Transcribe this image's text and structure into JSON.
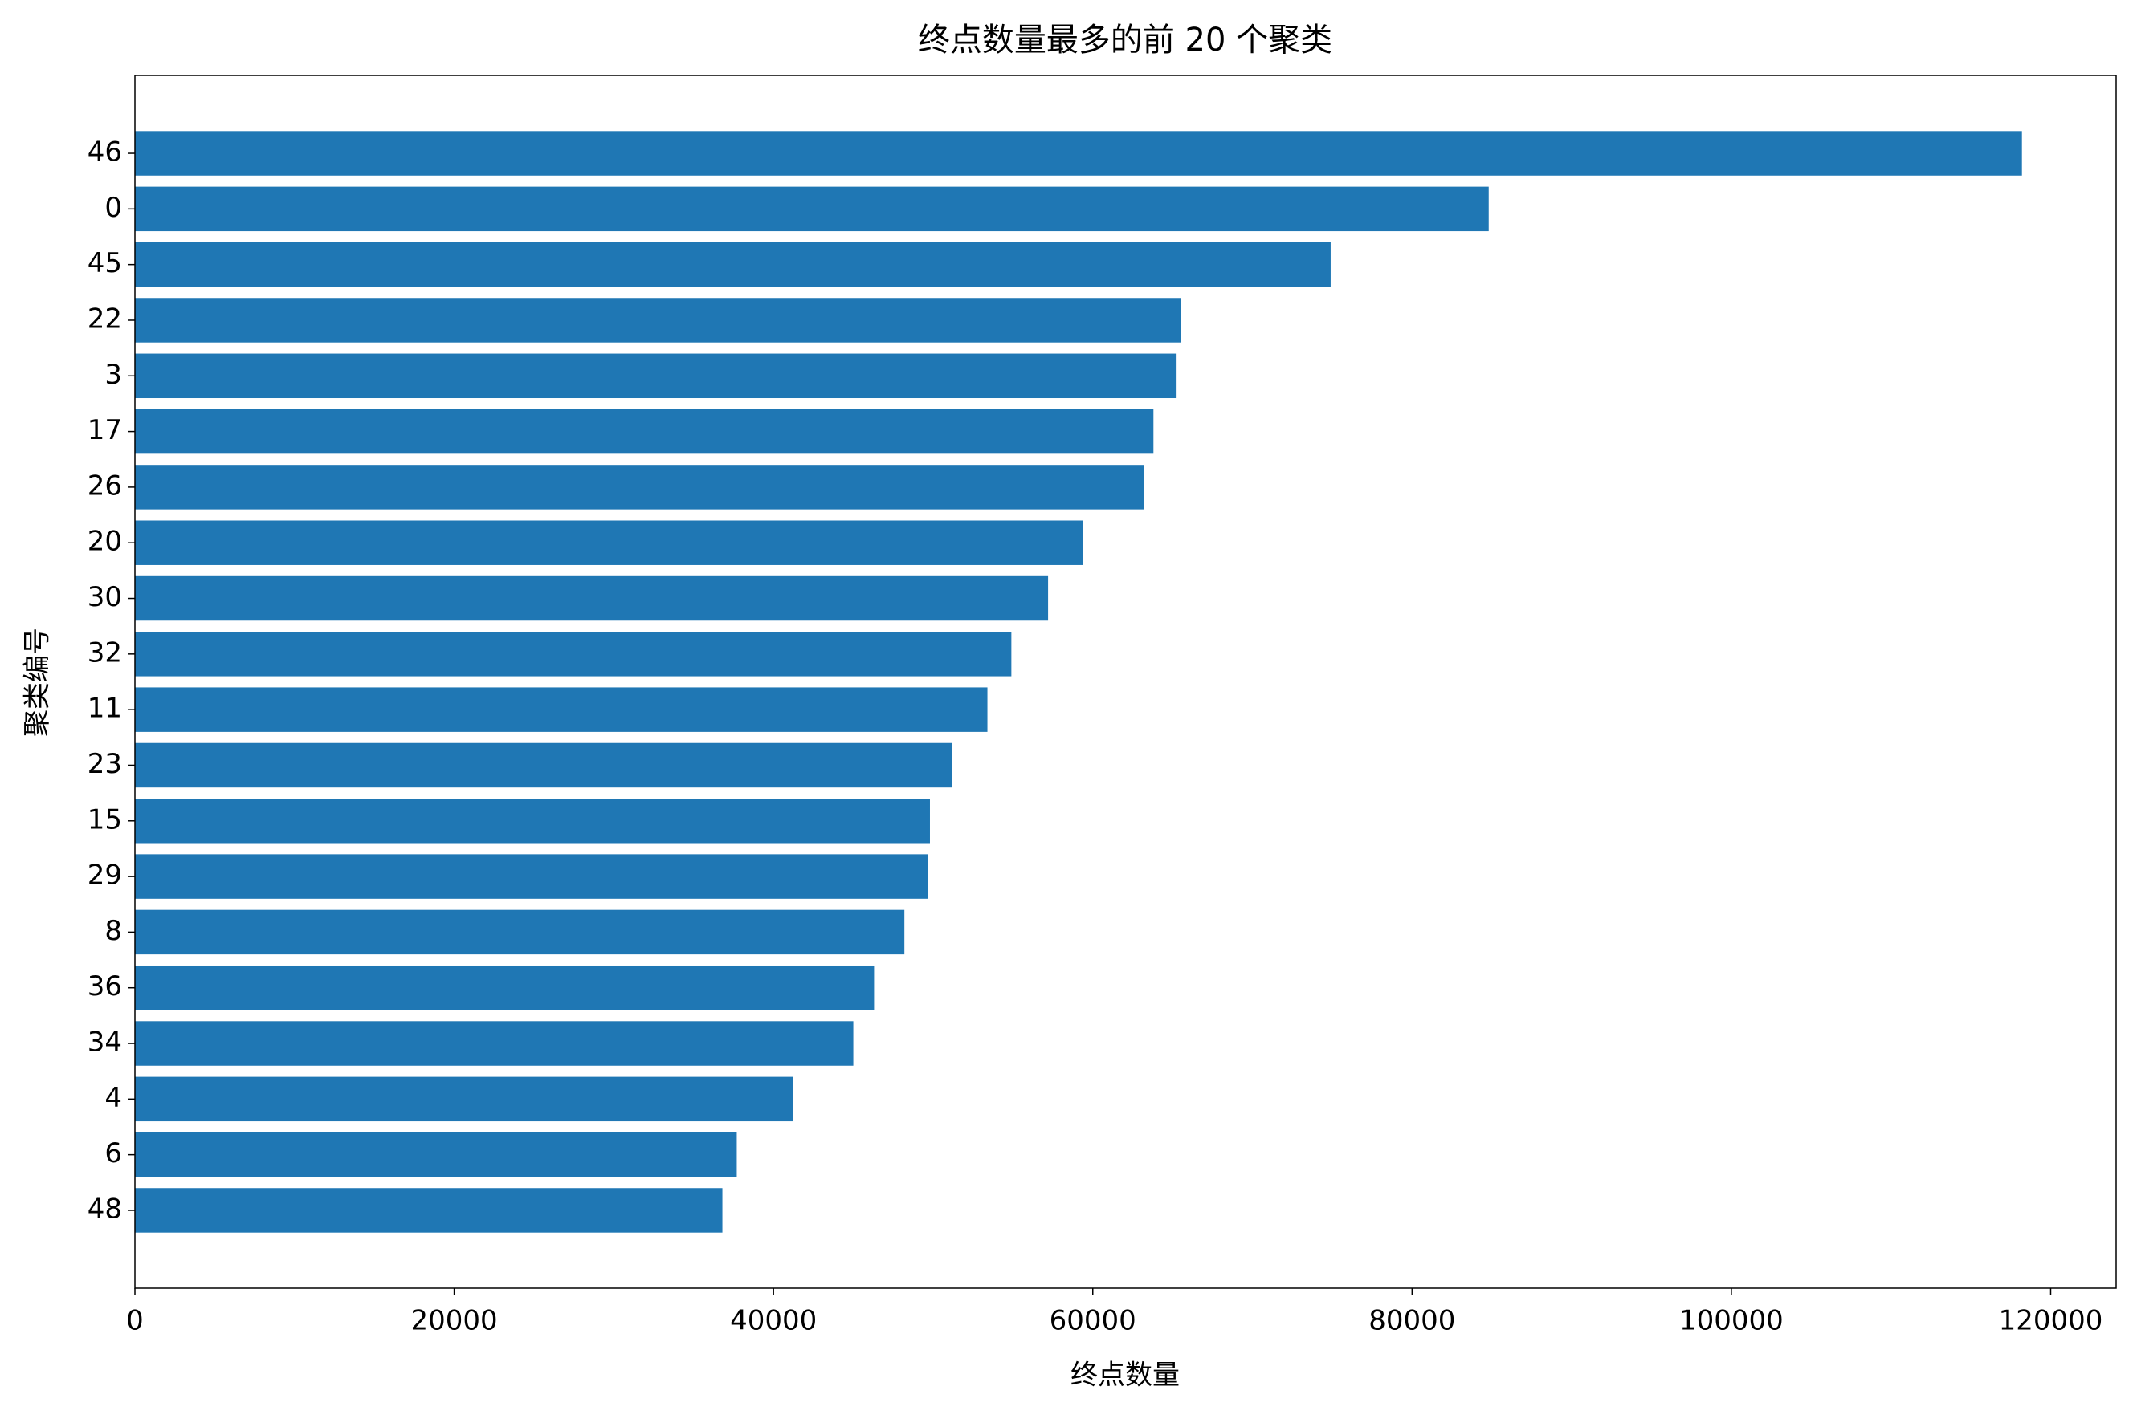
{
  "chart_data": {
    "type": "barh",
    "title": "终点数量最多的前 20 个聚类",
    "xlabel": "终点数量",
    "ylabel": "聚类编号",
    "categories": [
      "46",
      "0",
      "45",
      "22",
      "3",
      "17",
      "26",
      "20",
      "30",
      "32",
      "11",
      "23",
      "15",
      "29",
      "8",
      "36",
      "34",
      "4",
      "6",
      "48"
    ],
    "values": [
      118200,
      84800,
      74900,
      65500,
      65200,
      63800,
      63200,
      59400,
      57200,
      54900,
      53400,
      51200,
      49800,
      49700,
      48200,
      46300,
      45000,
      41200,
      37700,
      36800
    ],
    "color": "#1f77b4",
    "xlim": [
      0,
      124100
    ],
    "xticks": [
      0,
      20000,
      40000,
      60000,
      80000,
      100000,
      120000
    ],
    "grid": false
  }
}
